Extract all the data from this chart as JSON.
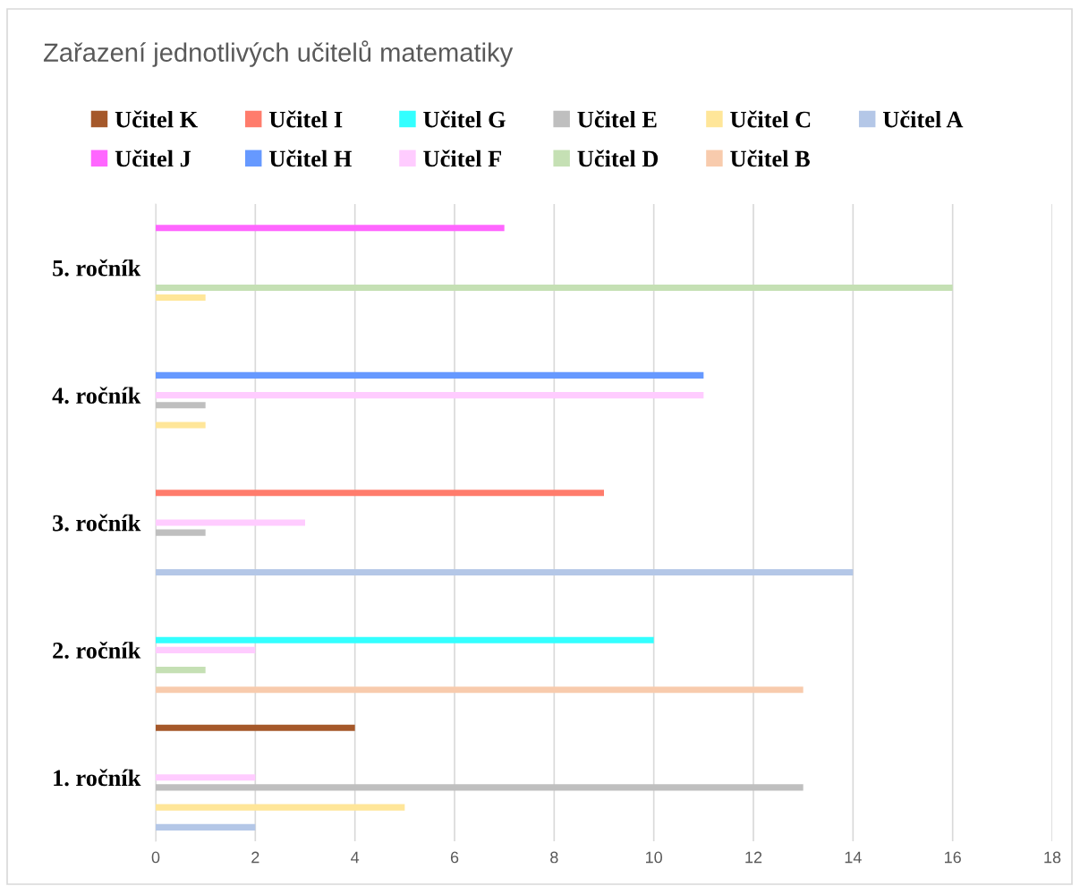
{
  "chart_data": {
    "type": "bar",
    "orientation": "horizontal",
    "title": "Zařazení jednotlivých učitelů matematiky",
    "categories": [
      "5. ročník",
      "4. ročník",
      "3. ročník",
      "2. ročník",
      "1. ročník"
    ],
    "series": [
      {
        "name": "Učitel A",
        "color": "#b4c7e7",
        "values": [
          null,
          null,
          14,
          null,
          2
        ]
      },
      {
        "name": "Učitel B",
        "color": "#f8cbad",
        "values": [
          null,
          null,
          null,
          13,
          null
        ]
      },
      {
        "name": "Učitel C",
        "color": "#ffe699",
        "values": [
          1,
          1,
          null,
          null,
          5
        ]
      },
      {
        "name": "Učitel D",
        "color": "#c5e0b4",
        "values": [
          16,
          null,
          null,
          1,
          null
        ]
      },
      {
        "name": "Učitel E",
        "color": "#bfbfbf",
        "values": [
          null,
          1,
          1,
          null,
          13
        ]
      },
      {
        "name": "Učitel F",
        "color": "#ffccff",
        "values": [
          null,
          11,
          3,
          2,
          2
        ]
      },
      {
        "name": "Učitel G",
        "color": "#33ffff",
        "values": [
          null,
          null,
          null,
          10,
          null
        ]
      },
      {
        "name": "Učitel H",
        "color": "#6699ff",
        "values": [
          null,
          11,
          null,
          null,
          null
        ]
      },
      {
        "name": "Učitel I",
        "color": "#ff7c6c",
        "values": [
          null,
          null,
          9,
          null,
          null
        ]
      },
      {
        "name": "Učitel J",
        "color": "#ff66ff",
        "values": [
          7,
          null,
          null,
          null,
          null
        ]
      },
      {
        "name": "Učitel K",
        "color": "#a5582a",
        "values": [
          null,
          null,
          null,
          null,
          4
        ]
      }
    ],
    "xlim": [
      0,
      18
    ],
    "xticks": [
      0,
      2,
      4,
      6,
      8,
      10,
      12,
      14,
      16,
      18
    ],
    "grid": "x",
    "legend": "top"
  }
}
